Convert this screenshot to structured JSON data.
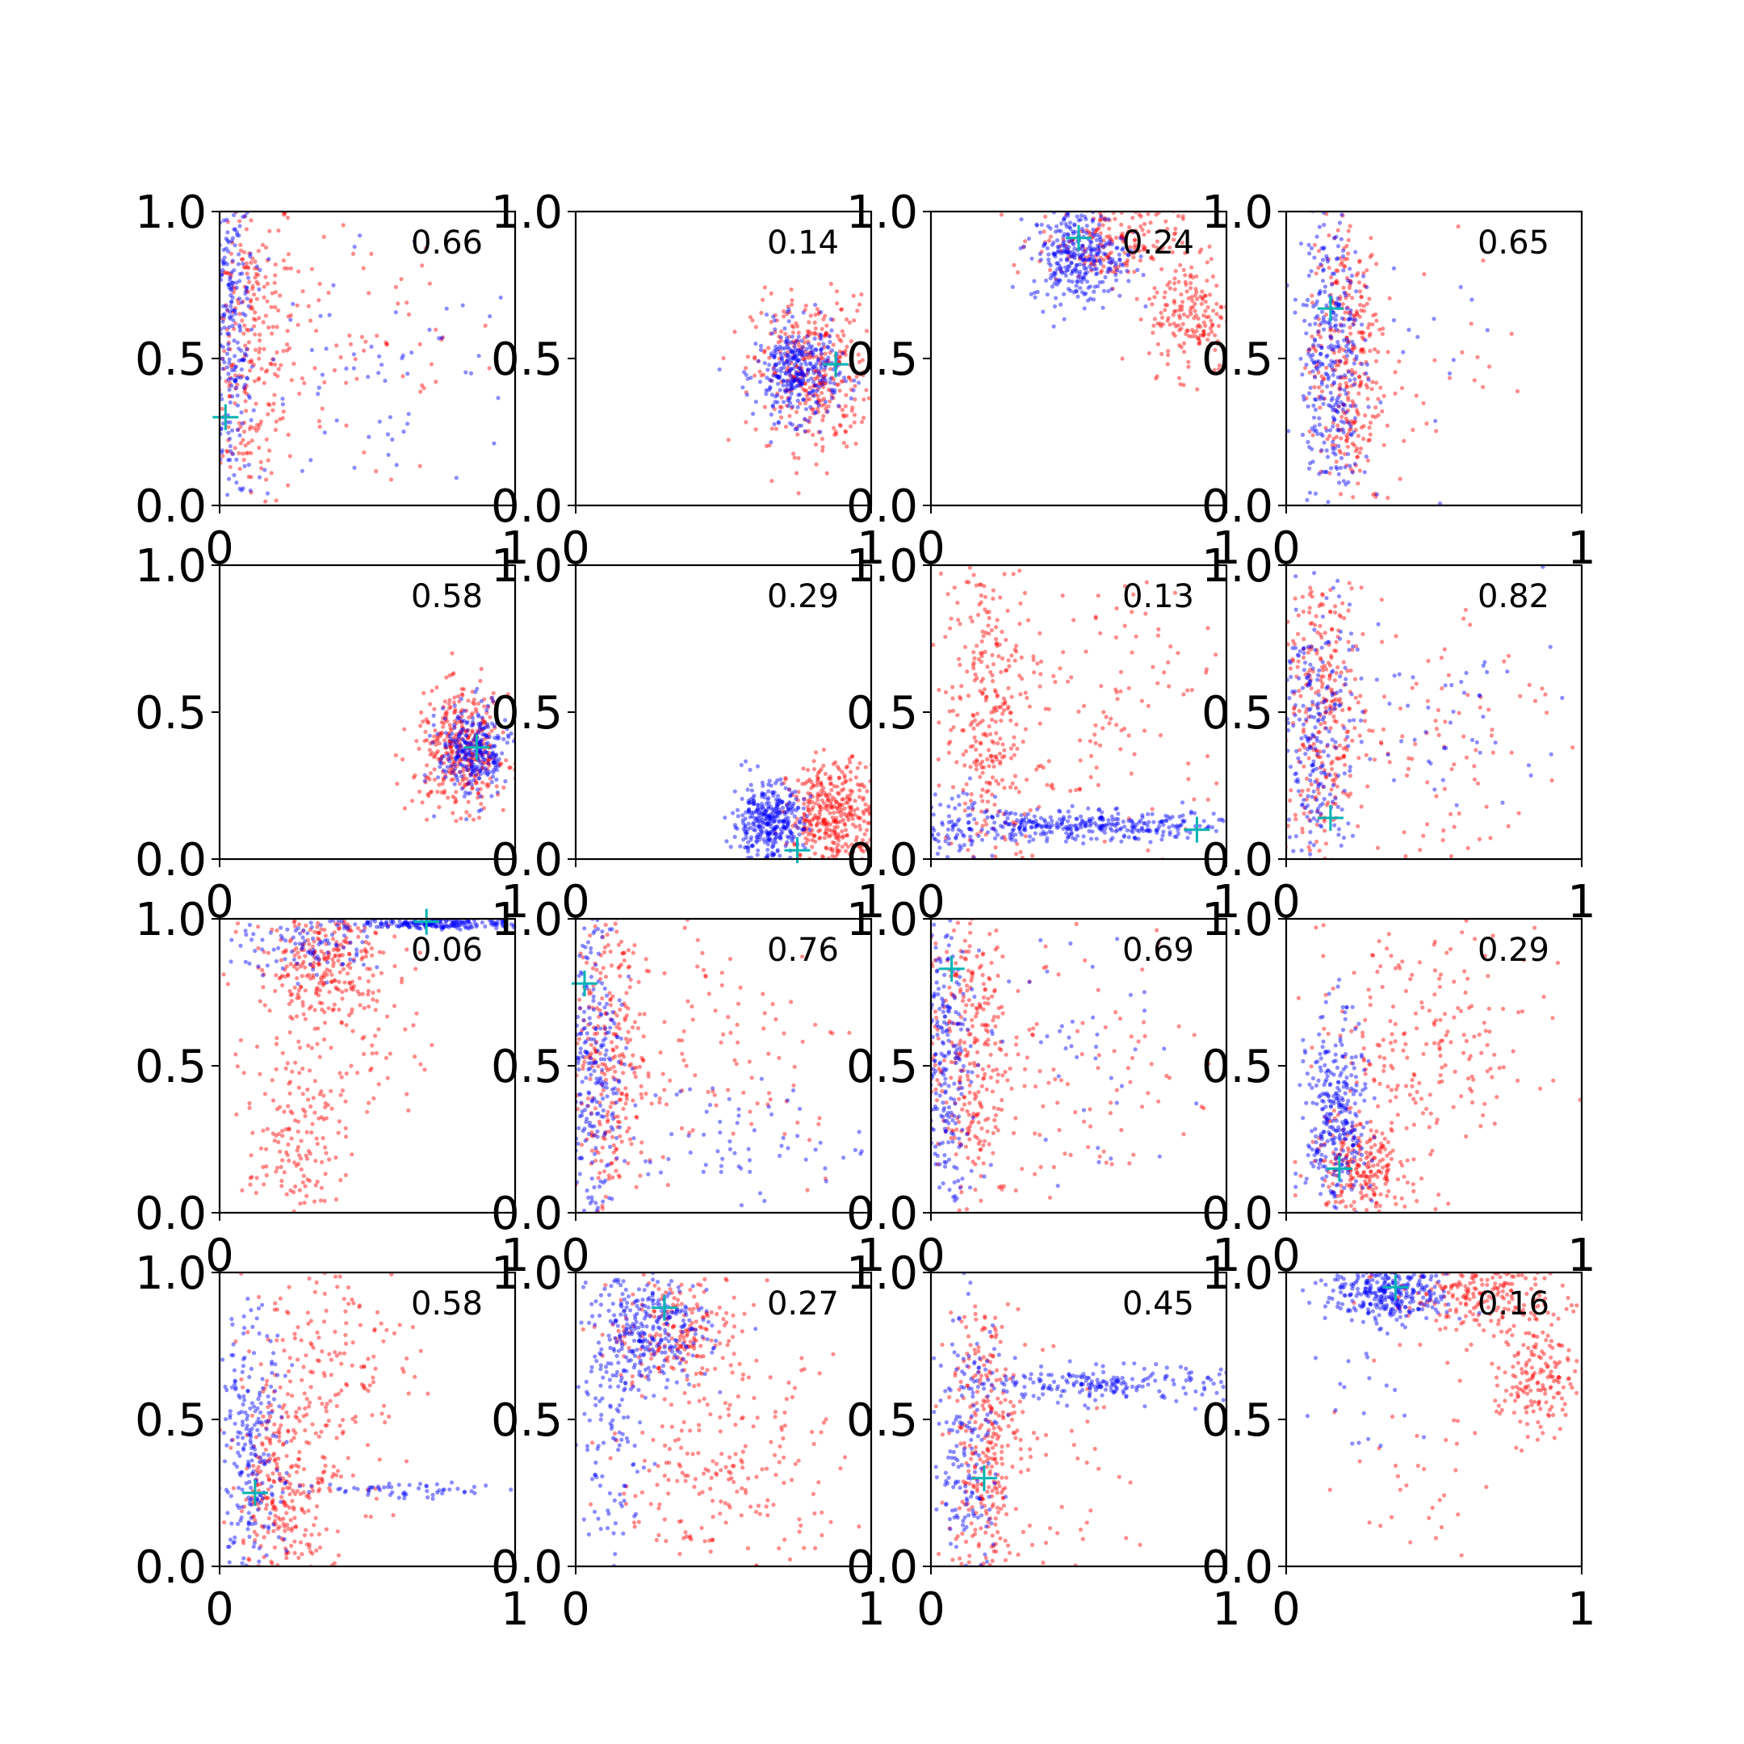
{
  "colors": {
    "series_a": "#0000ff",
    "series_b": "#ff0000",
    "marker": "#00b3b3",
    "axis": "#000000"
  },
  "chart_data": {
    "type": "scatter",
    "grid": false,
    "layout": {
      "rows": 4,
      "cols": 4
    },
    "xlim": [
      0,
      1
    ],
    "ylim": [
      0,
      1
    ],
    "x_ticks": [
      "0",
      "1"
    ],
    "y_ticks": [
      "0.0",
      "0.5",
      "1.0"
    ],
    "panels": [
      {
        "label": "0.66",
        "marker": [
          0.02,
          0.3
        ],
        "blue": [
          {
            "cx": 0.04,
            "cy": 0.6,
            "sx": 0.04,
            "sy": 0.3,
            "n": 260
          },
          {
            "cx": 0.5,
            "cy": 0.45,
            "sx": 0.28,
            "sy": 0.25,
            "n": 70
          }
        ],
        "red": [
          {
            "cx": 0.1,
            "cy": 0.55,
            "sx": 0.08,
            "sy": 0.3,
            "n": 300
          },
          {
            "cx": 0.45,
            "cy": 0.55,
            "sx": 0.25,
            "sy": 0.25,
            "n": 80
          }
        ]
      },
      {
        "label": "0.14",
        "marker": [
          0.88,
          0.48
        ],
        "blue": [
          {
            "cx": 0.75,
            "cy": 0.45,
            "sx": 0.07,
            "sy": 0.08,
            "n": 330
          }
        ],
        "red": [
          {
            "cx": 0.8,
            "cy": 0.45,
            "sx": 0.1,
            "sy": 0.13,
            "n": 360
          }
        ]
      },
      {
        "label": "0.24",
        "marker": [
          0.5,
          0.91
        ],
        "blue": [
          {
            "cx": 0.5,
            "cy": 0.85,
            "sx": 0.08,
            "sy": 0.08,
            "n": 320
          }
        ],
        "red": [
          {
            "cx": 0.6,
            "cy": 0.9,
            "sx": 0.12,
            "sy": 0.07,
            "n": 200
          },
          {
            "cx": 0.88,
            "cy": 0.65,
            "sx": 0.07,
            "sy": 0.1,
            "n": 180
          }
        ]
      },
      {
        "label": "0.65",
        "marker": [
          0.15,
          0.67
        ],
        "blue": [
          {
            "cx": 0.15,
            "cy": 0.5,
            "sx": 0.05,
            "sy": 0.28,
            "n": 320
          },
          {
            "cx": 0.45,
            "cy": 0.55,
            "sx": 0.2,
            "sy": 0.2,
            "n": 25
          }
        ],
        "red": [
          {
            "cx": 0.2,
            "cy": 0.5,
            "sx": 0.06,
            "sy": 0.28,
            "n": 320
          },
          {
            "cx": 0.45,
            "cy": 0.5,
            "sx": 0.2,
            "sy": 0.2,
            "n": 40
          }
        ]
      },
      {
        "label": "0.58",
        "marker": [
          0.87,
          0.38
        ],
        "blue": [
          {
            "cx": 0.86,
            "cy": 0.36,
            "sx": 0.06,
            "sy": 0.08,
            "n": 280
          }
        ],
        "red": [
          {
            "cx": 0.82,
            "cy": 0.37,
            "sx": 0.08,
            "sy": 0.1,
            "n": 380
          }
        ]
      },
      {
        "label": "0.29",
        "marker": [
          0.75,
          0.03
        ],
        "blue": [
          {
            "cx": 0.65,
            "cy": 0.12,
            "sx": 0.06,
            "sy": 0.07,
            "n": 360
          }
        ],
        "red": [
          {
            "cx": 0.88,
            "cy": 0.15,
            "sx": 0.08,
            "sy": 0.09,
            "n": 400
          }
        ]
      },
      {
        "label": "0.13",
        "marker": [
          0.9,
          0.1
        ],
        "blue": [
          {
            "cx": 0.55,
            "cy": 0.11,
            "sx": 0.25,
            "sy": 0.025,
            "n": 330
          },
          {
            "cx": 0.1,
            "cy": 0.12,
            "sx": 0.08,
            "sy": 0.06,
            "n": 90
          }
        ],
        "red": [
          {
            "cx": 0.2,
            "cy": 0.5,
            "sx": 0.08,
            "sy": 0.3,
            "n": 300
          },
          {
            "cx": 0.55,
            "cy": 0.5,
            "sx": 0.25,
            "sy": 0.25,
            "n": 150
          }
        ]
      },
      {
        "label": "0.82",
        "marker": [
          0.15,
          0.14
        ],
        "blue": [
          {
            "cx": 0.1,
            "cy": 0.4,
            "sx": 0.06,
            "sy": 0.28,
            "n": 250
          },
          {
            "cx": 0.5,
            "cy": 0.45,
            "sx": 0.25,
            "sy": 0.2,
            "n": 60
          }
        ],
        "red": [
          {
            "cx": 0.12,
            "cy": 0.5,
            "sx": 0.07,
            "sy": 0.25,
            "n": 280
          },
          {
            "cx": 0.45,
            "cy": 0.45,
            "sx": 0.25,
            "sy": 0.25,
            "n": 120
          }
        ]
      },
      {
        "label": "0.06",
        "marker": [
          0.7,
          0.99
        ],
        "blue": [
          {
            "cx": 0.75,
            "cy": 0.985,
            "sx": 0.15,
            "sy": 0.01,
            "n": 220
          },
          {
            "cx": 0.3,
            "cy": 0.9,
            "sx": 0.12,
            "sy": 0.05,
            "n": 90
          }
        ],
        "red": [
          {
            "cx": 0.35,
            "cy": 0.85,
            "sx": 0.12,
            "sy": 0.1,
            "n": 280
          },
          {
            "cx": 0.25,
            "cy": 0.2,
            "sx": 0.08,
            "sy": 0.12,
            "n": 130
          },
          {
            "cx": 0.4,
            "cy": 0.55,
            "sx": 0.15,
            "sy": 0.15,
            "n": 90
          }
        ]
      },
      {
        "label": "0.76",
        "marker": [
          0.03,
          0.78
        ],
        "blue": [
          {
            "cx": 0.06,
            "cy": 0.5,
            "sx": 0.05,
            "sy": 0.3,
            "n": 260
          },
          {
            "cx": 0.5,
            "cy": 0.25,
            "sx": 0.25,
            "sy": 0.1,
            "n": 70
          }
        ],
        "red": [
          {
            "cx": 0.1,
            "cy": 0.5,
            "sx": 0.07,
            "sy": 0.3,
            "n": 300
          },
          {
            "cx": 0.5,
            "cy": 0.55,
            "sx": 0.25,
            "sy": 0.25,
            "n": 110
          }
        ]
      },
      {
        "label": "0.69",
        "marker": [
          0.07,
          0.83
        ],
        "blue": [
          {
            "cx": 0.04,
            "cy": 0.5,
            "sx": 0.04,
            "sy": 0.3,
            "n": 250
          },
          {
            "cx": 0.5,
            "cy": 0.5,
            "sx": 0.25,
            "sy": 0.25,
            "n": 60
          }
        ],
        "red": [
          {
            "cx": 0.12,
            "cy": 0.55,
            "sx": 0.07,
            "sy": 0.28,
            "n": 300
          },
          {
            "cx": 0.5,
            "cy": 0.5,
            "sx": 0.25,
            "sy": 0.25,
            "n": 110
          }
        ]
      },
      {
        "label": "0.29",
        "marker": [
          0.18,
          0.15
        ],
        "blue": [
          {
            "cx": 0.17,
            "cy": 0.3,
            "sx": 0.05,
            "sy": 0.18,
            "n": 320
          }
        ],
        "red": [
          {
            "cx": 0.25,
            "cy": 0.15,
            "sx": 0.08,
            "sy": 0.08,
            "n": 220
          },
          {
            "cx": 0.45,
            "cy": 0.55,
            "sx": 0.2,
            "sy": 0.22,
            "n": 230
          }
        ]
      },
      {
        "label": "0.58",
        "marker": [
          0.12,
          0.25
        ],
        "blue": [
          {
            "cx": 0.1,
            "cy": 0.35,
            "sx": 0.06,
            "sy": 0.25,
            "n": 260
          },
          {
            "cx": 0.65,
            "cy": 0.26,
            "sx": 0.2,
            "sy": 0.015,
            "n": 60
          }
        ],
        "red": [
          {
            "cx": 0.22,
            "cy": 0.25,
            "sx": 0.08,
            "sy": 0.15,
            "n": 250
          },
          {
            "cx": 0.35,
            "cy": 0.65,
            "sx": 0.15,
            "sy": 0.22,
            "n": 200
          }
        ]
      },
      {
        "label": "0.27",
        "marker": [
          0.3,
          0.88
        ],
        "blue": [
          {
            "cx": 0.25,
            "cy": 0.8,
            "sx": 0.1,
            "sy": 0.1,
            "n": 300
          },
          {
            "cx": 0.12,
            "cy": 0.4,
            "sx": 0.06,
            "sy": 0.2,
            "n": 100
          }
        ],
        "red": [
          {
            "cx": 0.35,
            "cy": 0.8,
            "sx": 0.12,
            "sy": 0.1,
            "n": 200
          },
          {
            "cx": 0.5,
            "cy": 0.3,
            "sx": 0.2,
            "sy": 0.2,
            "n": 230
          }
        ]
      },
      {
        "label": "0.45",
        "marker": [
          0.18,
          0.3
        ],
        "blue": [
          {
            "cx": 0.6,
            "cy": 0.62,
            "sx": 0.2,
            "sy": 0.03,
            "n": 200
          },
          {
            "cx": 0.12,
            "cy": 0.4,
            "sx": 0.06,
            "sy": 0.25,
            "n": 180
          }
        ],
        "red": [
          {
            "cx": 0.18,
            "cy": 0.4,
            "sx": 0.06,
            "sy": 0.28,
            "n": 320
          },
          {
            "cx": 0.45,
            "cy": 0.3,
            "sx": 0.2,
            "sy": 0.2,
            "n": 40
          }
        ]
      },
      {
        "label": "0.16",
        "marker": [
          0.37,
          0.95
        ],
        "blue": [
          {
            "cx": 0.35,
            "cy": 0.93,
            "sx": 0.1,
            "sy": 0.05,
            "n": 320
          },
          {
            "cx": 0.25,
            "cy": 0.6,
            "sx": 0.1,
            "sy": 0.15,
            "n": 20
          }
        ],
        "red": [
          {
            "cx": 0.65,
            "cy": 0.92,
            "sx": 0.15,
            "sy": 0.06,
            "n": 220
          },
          {
            "cx": 0.85,
            "cy": 0.65,
            "sx": 0.06,
            "sy": 0.1,
            "n": 160
          },
          {
            "cx": 0.5,
            "cy": 0.4,
            "sx": 0.15,
            "sy": 0.2,
            "n": 40
          }
        ]
      }
    ]
  }
}
